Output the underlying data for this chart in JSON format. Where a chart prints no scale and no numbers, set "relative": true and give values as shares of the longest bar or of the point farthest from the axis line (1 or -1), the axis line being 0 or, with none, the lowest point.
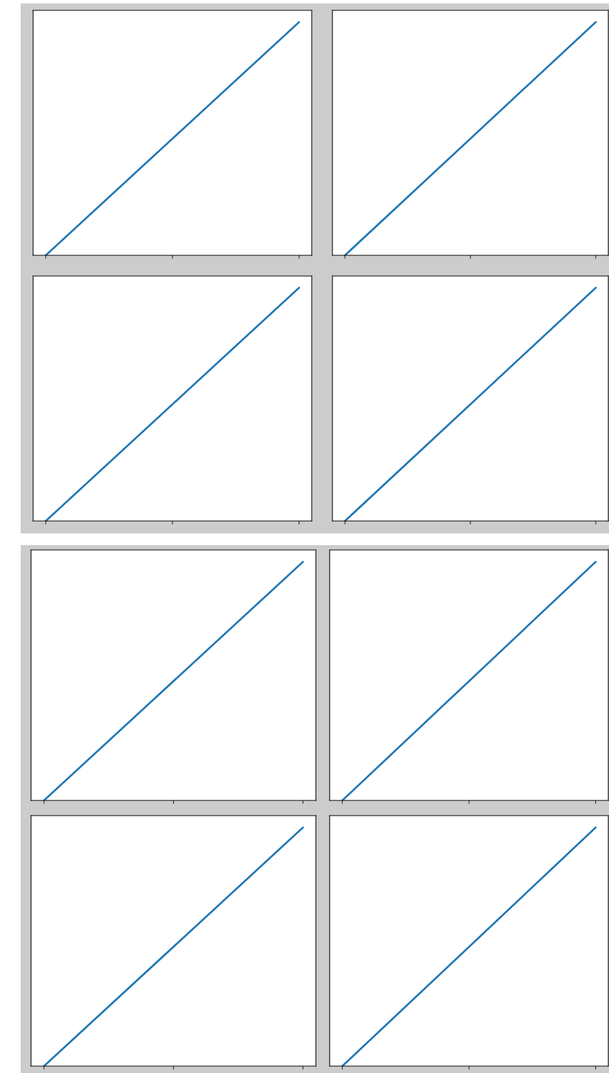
{
  "chart_data": [
    {
      "type": "line",
      "categories": [
        null,
        null,
        null
      ],
      "values": [
        0,
        0.5,
        1
      ],
      "color": "#1f77b4",
      "relative": true,
      "tick_labels": false,
      "grid": false
    },
    {
      "type": "line",
      "categories": [
        null,
        null,
        null
      ],
      "values": [
        0,
        0.5,
        1
      ],
      "color": "#1f77b4",
      "relative": true,
      "tick_labels": false,
      "grid": false
    },
    {
      "type": "line",
      "categories": [
        null,
        null,
        null
      ],
      "values": [
        0,
        0.5,
        1
      ],
      "color": "#1f77b4",
      "relative": true,
      "tick_labels": false,
      "grid": false
    },
    {
      "type": "line",
      "categories": [
        null,
        null,
        null
      ],
      "values": [
        0,
        0.5,
        1
      ],
      "color": "#1f77b4",
      "relative": true,
      "tick_labels": false,
      "grid": false
    },
    {
      "type": "line",
      "categories": [
        null,
        null,
        null
      ],
      "values": [
        0,
        0.5,
        1
      ],
      "color": "#1f77b4",
      "relative": true,
      "tick_labels": false,
      "grid": false
    },
    {
      "type": "line",
      "categories": [
        null,
        null,
        null
      ],
      "values": [
        0,
        0.5,
        1
      ],
      "color": "#1f77b4",
      "relative": true,
      "tick_labels": false,
      "grid": false
    },
    {
      "type": "line",
      "categories": [
        null,
        null,
        null
      ],
      "values": [
        0,
        0.5,
        1
      ],
      "color": "#1f77b4",
      "relative": true,
      "tick_labels": false,
      "grid": false
    },
    {
      "type": "line",
      "categories": [
        null,
        null,
        null
      ],
      "values": [
        0,
        0.5,
        1
      ],
      "color": "#1f77b4",
      "relative": true,
      "tick_labels": false,
      "grid": false
    }
  ]
}
